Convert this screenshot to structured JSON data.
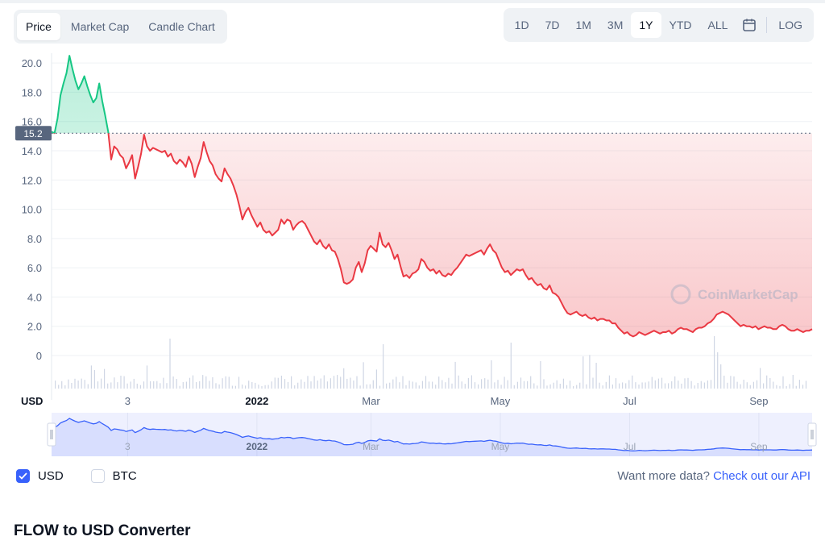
{
  "tabs": [
    {
      "label": "Price",
      "active": true
    },
    {
      "label": "Market Cap",
      "active": false
    },
    {
      "label": "Candle Chart",
      "active": false
    }
  ],
  "ranges": [
    {
      "label": "1D",
      "active": false
    },
    {
      "label": "7D",
      "active": false
    },
    {
      "label": "1M",
      "active": false
    },
    {
      "label": "3M",
      "active": false
    },
    {
      "label": "1Y",
      "active": true
    },
    {
      "label": "YTD",
      "active": false
    },
    {
      "label": "ALL",
      "active": false
    }
  ],
  "log_label": "LOG",
  "calendar_icon": "calendar-icon",
  "currency_axis_label": "USD",
  "chart_data": {
    "type": "area",
    "ylim": [
      0,
      21
    ],
    "yticks": [
      "0",
      "2.0",
      "4.0",
      "6.0",
      "8.0",
      "10.0",
      "12.0",
      "14.0",
      "16.0",
      "18.0",
      "20.0"
    ],
    "ytick_values": [
      0,
      2,
      4,
      6,
      8,
      10,
      12,
      14,
      16,
      18,
      20
    ],
    "xticks": [
      "3",
      "2022",
      "Mar",
      "May",
      "Jul",
      "Sep"
    ],
    "xtick_frac": [
      0.1,
      0.27,
      0.42,
      0.59,
      0.76,
      0.93
    ],
    "reference_value": 15.2,
    "reference_label": "15.2",
    "up_color": "#16c784",
    "down_color": "#ea3943",
    "navigator_color": "#3861fb",
    "watermark": "CoinMarketCap",
    "series": [
      {
        "values": [
          15.3,
          15.2,
          16.2,
          17.8,
          18.6,
          19.3,
          20.5,
          19.6,
          18.8,
          18.2,
          18.6,
          19.1,
          18.4,
          17.8,
          17.3,
          17.6,
          18.6,
          17.4,
          16.4,
          15.3,
          13.4,
          14.3,
          14.1,
          13.7,
          13.5,
          12.8,
          13.2,
          13.7,
          12.1,
          12.9,
          13.8,
          15.1,
          14.3,
          14.0,
          14.2,
          14.1,
          14.0,
          13.9,
          14.0,
          13.6,
          13.8,
          13.3,
          13.1,
          13.4,
          13.2,
          12.9,
          13.6,
          13.1,
          12.2,
          12.9,
          13.5,
          14.6,
          13.9,
          13.3,
          13.0,
          12.4,
          12.1,
          11.9,
          12.8,
          12.4,
          12.1,
          11.6,
          11.0,
          10.2,
          9.3,
          9.8,
          10.1,
          9.6,
          9.2,
          8.8,
          9.1,
          8.6,
          8.4,
          8.5,
          8.2,
          8.4,
          8.6,
          9.3,
          9.0,
          9.3,
          9.2,
          8.6,
          8.9,
          9.1,
          9.2,
          9.0,
          8.6,
          8.2,
          7.8,
          7.6,
          7.9,
          7.5,
          7.3,
          7.6,
          7.2,
          7.1,
          6.6,
          5.9,
          5.0,
          4.9,
          5.0,
          5.2,
          6.0,
          6.4,
          5.7,
          6.3,
          7.2,
          7.5,
          7.3,
          7.1,
          8.4,
          7.6,
          7.4,
          7.7,
          7.2,
          6.6,
          6.9,
          6.1,
          5.4,
          5.5,
          5.3,
          5.6,
          5.7,
          5.9,
          6.6,
          6.4,
          6.0,
          5.8,
          5.9,
          5.6,
          5.8,
          5.5,
          5.4,
          5.6,
          5.5,
          5.8,
          6.0,
          6.3,
          6.6,
          6.9,
          6.8,
          6.9,
          7.0,
          7.1,
          7.2,
          6.9,
          7.3,
          7.6,
          7.2,
          7.0,
          6.5,
          6.0,
          5.7,
          5.8,
          5.5,
          5.7,
          5.9,
          5.8,
          5.9,
          5.5,
          5.2,
          5.3,
          5.0,
          4.8,
          4.9,
          4.6,
          4.5,
          4.8,
          4.3,
          4.2,
          4.0,
          3.6,
          3.2,
          2.9,
          2.8,
          2.9,
          3.0,
          2.8,
          2.7,
          2.8,
          2.6,
          2.5,
          2.6,
          2.4,
          2.5,
          2.5,
          2.4,
          2.4,
          2.2,
          2.2,
          1.9,
          1.7,
          1.5,
          1.6,
          1.4,
          1.3,
          1.4,
          1.6,
          1.5,
          1.4,
          1.5,
          1.6,
          1.7,
          1.6,
          1.5,
          1.6,
          1.6,
          1.7,
          1.5,
          1.6,
          1.8,
          1.9,
          1.8,
          1.8,
          1.7,
          1.6,
          1.8,
          1.9,
          1.9,
          2.0,
          2.2,
          2.3,
          2.5,
          2.8,
          2.9,
          3.0,
          2.9,
          2.8,
          2.6,
          2.4,
          2.2,
          2.0,
          2.1,
          2.0,
          2.0,
          1.9,
          2.0,
          1.8,
          1.9,
          2.0,
          1.9,
          1.9,
          1.8,
          1.8,
          2.0,
          2.1,
          2.0,
          1.8,
          1.7,
          1.7,
          1.8,
          1.7,
          1.6,
          1.7,
          1.7,
          1.8
        ]
      }
    ]
  },
  "legend": [
    {
      "label": "USD",
      "checked": true
    },
    {
      "label": "BTC",
      "checked": false
    }
  ],
  "more_data": {
    "prefix": "Want more data?",
    "link": "Check out our API"
  },
  "section_title": "FLOW to USD Converter"
}
